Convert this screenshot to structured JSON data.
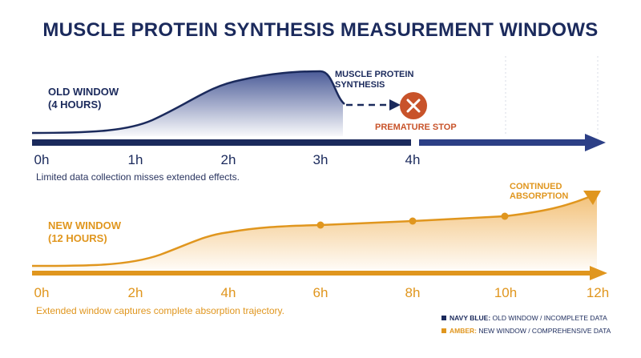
{
  "title": "MUSCLE PROTEIN SYNTHESIS MEASUREMENT WINDOWS",
  "old_window": {
    "label_line1": "OLD WINDOW",
    "label_line2": "(4 HOURS)",
    "curve_label_line1": "MUSCLE PROTEIN",
    "curve_label_line2": "SYNTHESIS",
    "stop_label": "PREMATURE STOP",
    "ticks": [
      "0h",
      "1h",
      "2h",
      "3h",
      "4h"
    ],
    "caption": "Limited data collection misses extended effects.",
    "color": "#1b2a5c"
  },
  "new_window": {
    "label_line1": "NEW WINDOW",
    "label_line2": "(12 HOURS)",
    "curve_label_line1": "CONTINUED",
    "curve_label_line2": "ABSORPTION",
    "ticks": [
      "0h",
      "2h",
      "4h",
      "6h",
      "8h",
      "10h",
      "12h"
    ],
    "caption": "Extended window captures complete absorption trajectory.",
    "color": "#e0961e"
  },
  "legend": [
    {
      "key": "NAVY BLUE:",
      "text": " OLD WINDOW / INCOMPLETE DATA",
      "color": "#1b2a5c"
    },
    {
      "key": "AMBER:",
      "text": " NEW WINDOW / COMPREHENSIVE DATA",
      "color": "#e0961e"
    }
  ],
  "stop_icon_color": "#c8532a"
}
